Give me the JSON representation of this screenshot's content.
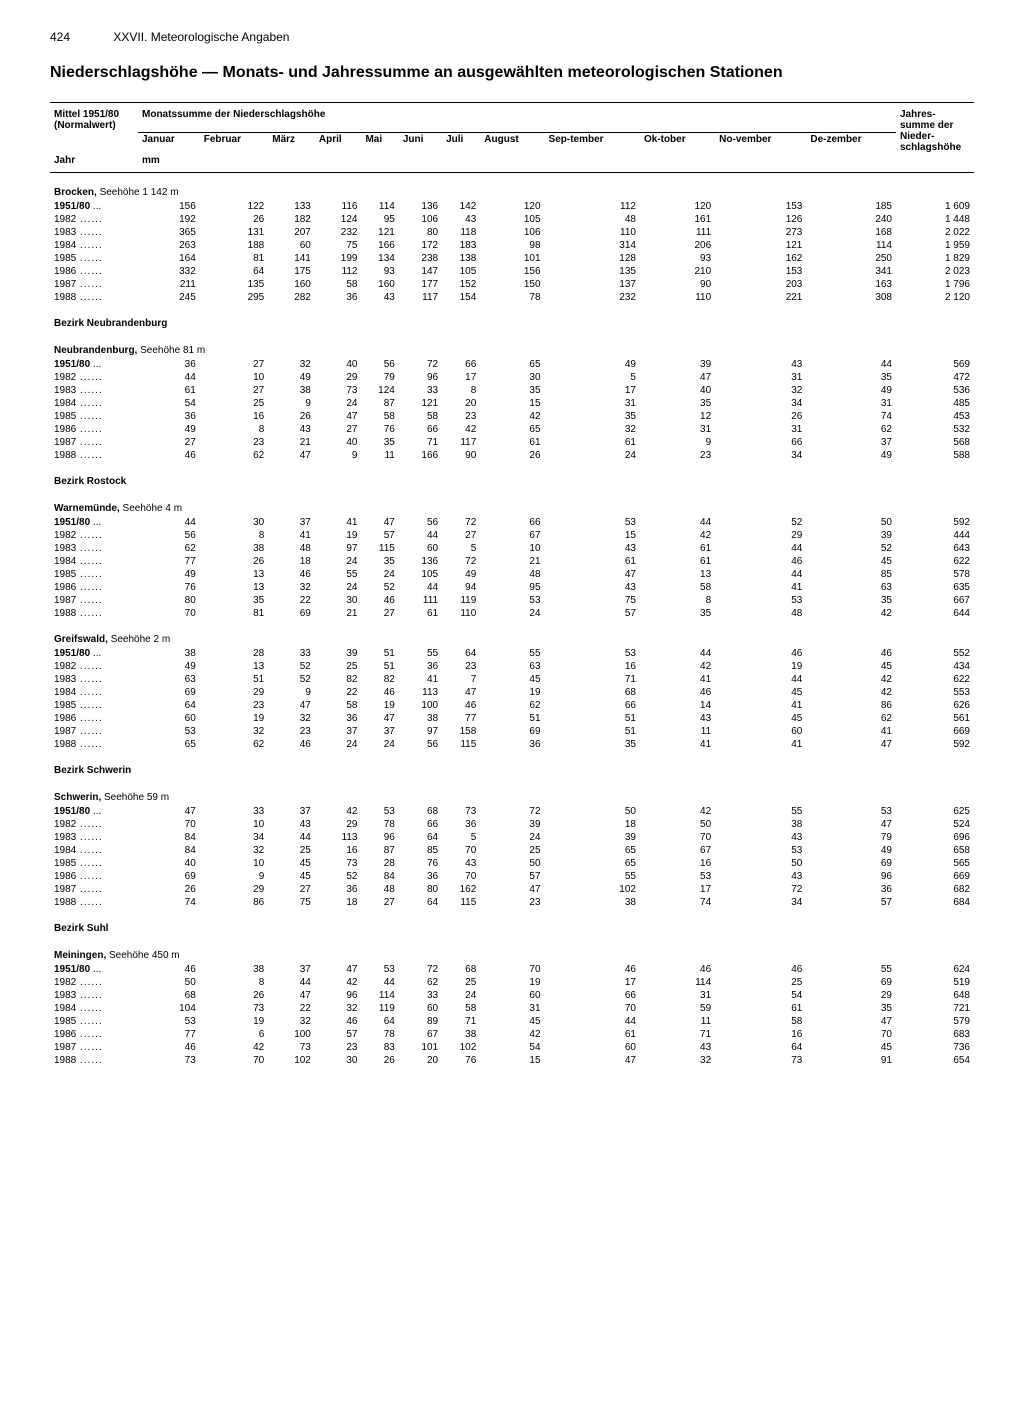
{
  "page_number": "424",
  "chapter": "XXVII. Meteorologische Angaben",
  "title": "Niederschlagshöhe — Monats- und Jahressumme an ausgewählten meteorologischen Stationen",
  "header": {
    "left_top": "Mittel 1951/80 (Normalwert)",
    "left_bottom": "Jahr",
    "months_label": "Monatssumme der Niederschlagshöhe",
    "unit": "mm",
    "jahres": "Jahres-summe der Nieder-schlagshöhe",
    "months": [
      "Januar",
      "Februar",
      "März",
      "April",
      "Mai",
      "Juni",
      "Juli",
      "August",
      "Sep-tember",
      "Ok-tober",
      "No-vember",
      "De-zember"
    ]
  },
  "stations": [
    {
      "title": "Brocken,",
      "sub": "Seehöhe 1 142 m",
      "rows": [
        {
          "y": "1951/80",
          "v": [
            156,
            122,
            133,
            116,
            114,
            136,
            142,
            120,
            112,
            120,
            153,
            185,
            "1 609"
          ]
        },
        {
          "y": "1982",
          "v": [
            192,
            26,
            182,
            124,
            95,
            106,
            43,
            105,
            48,
            161,
            126,
            240,
            "1 448"
          ]
        },
        {
          "y": "1983",
          "v": [
            365,
            131,
            207,
            232,
            121,
            80,
            118,
            106,
            110,
            111,
            273,
            168,
            "2 022"
          ]
        },
        {
          "y": "1984",
          "v": [
            263,
            188,
            60,
            75,
            166,
            172,
            183,
            98,
            314,
            206,
            121,
            114,
            "1 959"
          ]
        },
        {
          "y": "1985",
          "v": [
            164,
            81,
            141,
            199,
            134,
            238,
            138,
            101,
            128,
            93,
            162,
            250,
            "1 829"
          ]
        },
        {
          "y": "1986",
          "v": [
            332,
            64,
            175,
            112,
            93,
            147,
            105,
            156,
            135,
            210,
            153,
            341,
            "2 023"
          ]
        },
        {
          "y": "1987",
          "v": [
            211,
            135,
            160,
            58,
            160,
            177,
            152,
            150,
            137,
            90,
            203,
            163,
            "1 796"
          ]
        },
        {
          "y": "1988",
          "v": [
            245,
            295,
            282,
            36,
            43,
            117,
            154,
            78,
            232,
            110,
            221,
            308,
            "2 120"
          ]
        }
      ]
    },
    {
      "region": "Bezirk Neubrandenburg",
      "title": "Neubrandenburg,",
      "sub": "Seehöhe 81 m",
      "rows": [
        {
          "y": "1951/80",
          "v": [
            36,
            27,
            32,
            40,
            56,
            72,
            66,
            65,
            49,
            39,
            43,
            44,
            569
          ]
        },
        {
          "y": "1982",
          "v": [
            44,
            10,
            49,
            29,
            79,
            96,
            17,
            30,
            5,
            47,
            31,
            35,
            472
          ]
        },
        {
          "y": "1983",
          "v": [
            61,
            27,
            38,
            73,
            124,
            33,
            8,
            35,
            17,
            40,
            32,
            49,
            536
          ]
        },
        {
          "y": "1984",
          "v": [
            54,
            25,
            9,
            24,
            87,
            121,
            20,
            15,
            31,
            35,
            34,
            31,
            485
          ]
        },
        {
          "y": "1985",
          "v": [
            36,
            16,
            26,
            47,
            58,
            58,
            23,
            42,
            35,
            12,
            26,
            74,
            453
          ]
        },
        {
          "y": "1986",
          "v": [
            49,
            8,
            43,
            27,
            76,
            66,
            42,
            65,
            32,
            31,
            31,
            62,
            532
          ]
        },
        {
          "y": "1987",
          "v": [
            27,
            23,
            21,
            40,
            35,
            71,
            117,
            61,
            61,
            9,
            66,
            37,
            568
          ]
        },
        {
          "y": "1988",
          "v": [
            46,
            62,
            47,
            9,
            11,
            166,
            90,
            26,
            24,
            23,
            34,
            49,
            588
          ]
        }
      ]
    },
    {
      "region": "Bezirk Rostock",
      "title": "Warnemünde,",
      "sub": "Seehöhe 4 m",
      "rows": [
        {
          "y": "1951/80",
          "v": [
            44,
            30,
            37,
            41,
            47,
            56,
            72,
            66,
            53,
            44,
            52,
            50,
            592
          ]
        },
        {
          "y": "1982",
          "v": [
            56,
            8,
            41,
            19,
            57,
            44,
            27,
            67,
            15,
            42,
            29,
            39,
            444
          ]
        },
        {
          "y": "1983",
          "v": [
            62,
            38,
            48,
            97,
            115,
            60,
            5,
            10,
            43,
            61,
            44,
            52,
            643
          ]
        },
        {
          "y": "1984",
          "v": [
            77,
            26,
            18,
            24,
            35,
            136,
            72,
            21,
            61,
            61,
            46,
            45,
            622
          ]
        },
        {
          "y": "1985",
          "v": [
            49,
            13,
            46,
            55,
            24,
            105,
            49,
            48,
            47,
            13,
            44,
            85,
            578
          ]
        },
        {
          "y": "1986",
          "v": [
            76,
            13,
            32,
            24,
            52,
            44,
            94,
            95,
            43,
            58,
            41,
            63,
            635
          ]
        },
        {
          "y": "1987",
          "v": [
            80,
            35,
            22,
            30,
            46,
            111,
            119,
            53,
            75,
            8,
            53,
            35,
            667
          ]
        },
        {
          "y": "1988",
          "v": [
            70,
            81,
            69,
            21,
            27,
            61,
            110,
            24,
            57,
            35,
            48,
            42,
            644
          ]
        }
      ]
    },
    {
      "title": "Greifswald,",
      "sub": "Seehöhe 2 m",
      "rows": [
        {
          "y": "1951/80",
          "v": [
            38,
            28,
            33,
            39,
            51,
            55,
            64,
            55,
            53,
            44,
            46,
            46,
            552
          ]
        },
        {
          "y": "1982",
          "v": [
            49,
            13,
            52,
            25,
            51,
            36,
            23,
            63,
            16,
            42,
            19,
            45,
            434
          ]
        },
        {
          "y": "1983",
          "v": [
            63,
            51,
            52,
            82,
            82,
            41,
            7,
            45,
            71,
            41,
            44,
            42,
            622
          ]
        },
        {
          "y": "1984",
          "v": [
            69,
            29,
            9,
            22,
            46,
            113,
            47,
            19,
            68,
            46,
            45,
            42,
            553
          ]
        },
        {
          "y": "1985",
          "v": [
            64,
            23,
            47,
            58,
            19,
            100,
            46,
            62,
            66,
            14,
            41,
            86,
            626
          ]
        },
        {
          "y": "1986",
          "v": [
            60,
            19,
            32,
            36,
            47,
            38,
            77,
            51,
            51,
            43,
            45,
            62,
            561
          ]
        },
        {
          "y": "1987",
          "v": [
            53,
            32,
            23,
            37,
            37,
            97,
            158,
            69,
            51,
            11,
            60,
            41,
            669
          ]
        },
        {
          "y": "1988",
          "v": [
            65,
            62,
            46,
            24,
            24,
            56,
            115,
            36,
            35,
            41,
            41,
            47,
            592
          ]
        }
      ]
    },
    {
      "region": "Bezirk Schwerin",
      "title": "Schwerin,",
      "sub": "Seehöhe 59 m",
      "rows": [
        {
          "y": "1951/80",
          "v": [
            47,
            33,
            37,
            42,
            53,
            68,
            73,
            72,
            50,
            42,
            55,
            53,
            625
          ]
        },
        {
          "y": "1982",
          "v": [
            70,
            10,
            43,
            29,
            78,
            66,
            36,
            39,
            18,
            50,
            38,
            47,
            524
          ]
        },
        {
          "y": "1983",
          "v": [
            84,
            34,
            44,
            113,
            96,
            64,
            5,
            24,
            39,
            70,
            43,
            79,
            696
          ]
        },
        {
          "y": "1984",
          "v": [
            84,
            32,
            25,
            16,
            87,
            85,
            70,
            25,
            65,
            67,
            53,
            49,
            658
          ]
        },
        {
          "y": "1985",
          "v": [
            40,
            10,
            45,
            73,
            28,
            76,
            43,
            50,
            65,
            16,
            50,
            69,
            565
          ]
        },
        {
          "y": "1986",
          "v": [
            69,
            9,
            45,
            52,
            84,
            36,
            70,
            57,
            55,
            53,
            43,
            96,
            669
          ]
        },
        {
          "y": "1987",
          "v": [
            26,
            29,
            27,
            36,
            48,
            80,
            162,
            47,
            102,
            17,
            72,
            36,
            682
          ]
        },
        {
          "y": "1988",
          "v": [
            74,
            86,
            75,
            18,
            27,
            64,
            115,
            23,
            38,
            74,
            34,
            57,
            684
          ]
        }
      ]
    },
    {
      "region": "Bezirk Suhl",
      "title": "Meiningen,",
      "sub": "Seehöhe 450 m",
      "rows": [
        {
          "y": "1951/80",
          "v": [
            46,
            38,
            37,
            47,
            53,
            72,
            68,
            70,
            46,
            46,
            46,
            55,
            624
          ]
        },
        {
          "y": "1982",
          "v": [
            50,
            8,
            44,
            42,
            44,
            62,
            25,
            19,
            17,
            114,
            25,
            69,
            519
          ]
        },
        {
          "y": "1983",
          "v": [
            68,
            26,
            47,
            96,
            114,
            33,
            24,
            60,
            66,
            31,
            54,
            29,
            648
          ]
        },
        {
          "y": "1984",
          "v": [
            104,
            73,
            22,
            32,
            119,
            60,
            58,
            31,
            70,
            59,
            61,
            35,
            721
          ]
        },
        {
          "y": "1985",
          "v": [
            53,
            19,
            32,
            46,
            64,
            89,
            71,
            45,
            44,
            11,
            58,
            47,
            579
          ]
        },
        {
          "y": "1986",
          "v": [
            77,
            6,
            100,
            57,
            78,
            67,
            38,
            42,
            61,
            71,
            16,
            70,
            683
          ]
        },
        {
          "y": "1987",
          "v": [
            46,
            42,
            73,
            23,
            83,
            101,
            102,
            54,
            60,
            43,
            64,
            45,
            736
          ]
        },
        {
          "y": "1988",
          "v": [
            73,
            70,
            102,
            30,
            26,
            20,
            76,
            15,
            47,
            32,
            73,
            91,
            654
          ]
        }
      ]
    }
  ]
}
